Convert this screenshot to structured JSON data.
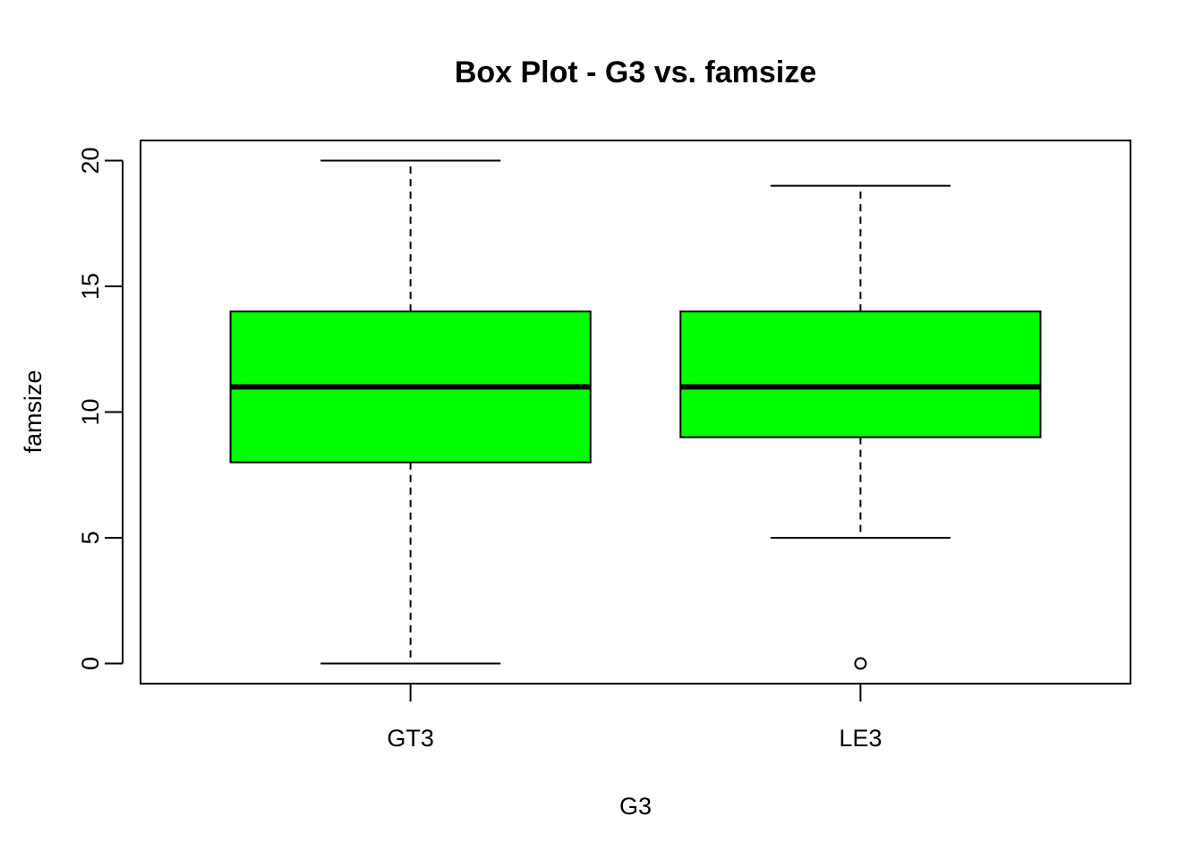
{
  "chart_data": {
    "type": "box",
    "title": "Box Plot - G3 vs. famsize",
    "xlabel": "G3",
    "ylabel": "famsize",
    "ylim": [
      -0.8,
      20.8
    ],
    "yticks": [
      0,
      5,
      10,
      15,
      20
    ],
    "categories": [
      "GT3",
      "LE3"
    ],
    "boxes": [
      {
        "category": "GT3",
        "whisker_low": 0,
        "q1": 8,
        "median": 11,
        "q3": 14,
        "whisker_high": 20,
        "outliers": []
      },
      {
        "category": "LE3",
        "whisker_low": 5,
        "q1": 9,
        "median": 11,
        "q3": 14,
        "whisker_high": 19,
        "outliers": [
          0
        ]
      }
    ],
    "box_color": "#00ff00",
    "grid": false
  }
}
